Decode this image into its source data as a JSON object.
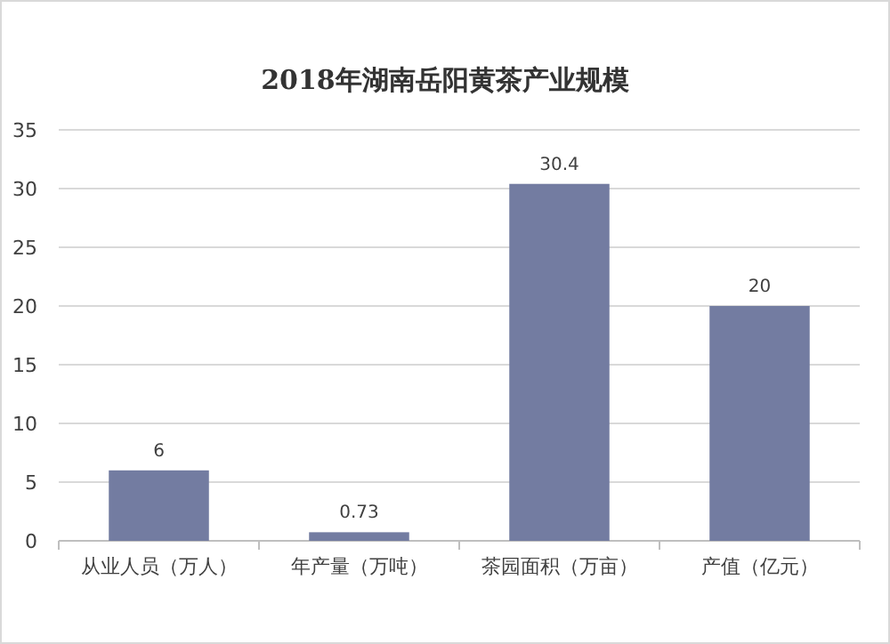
{
  "chart_data": {
    "type": "bar",
    "title": "2018年湖南岳阳黄茶产业规模",
    "categories": [
      "从业人员（万人）",
      "年产量（万吨）",
      "茶园面积（万亩）",
      "产值（亿元）"
    ],
    "values": [
      6,
      0.73,
      30.4,
      20
    ],
    "color": "#737ca1",
    "data_labels": true,
    "ylim": [
      0,
      35
    ],
    "yticks": [
      0,
      5,
      10,
      15,
      20,
      25,
      30,
      35
    ],
    "grid": "y"
  }
}
